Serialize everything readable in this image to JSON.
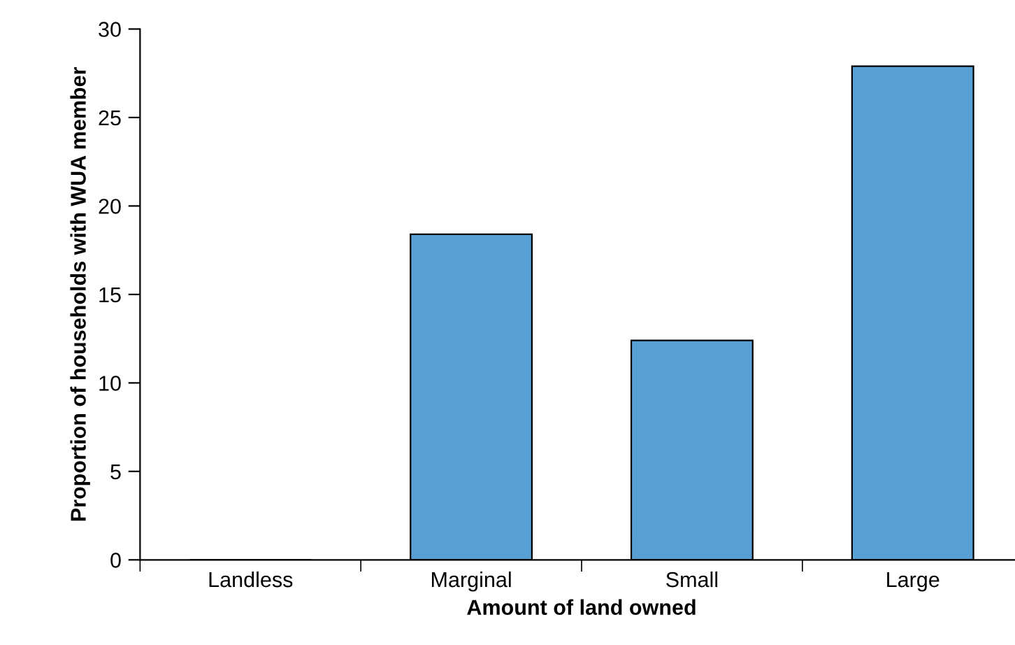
{
  "chart_data": {
    "type": "bar",
    "xlabel": "Amount of land owned",
    "ylabel": "Proportion of households with WUA member",
    "categories": [
      "Landless",
      "Marginal",
      "Small",
      "Large"
    ],
    "values": [
      0,
      18.4,
      12.4,
      27.9
    ],
    "color": "#589fd3",
    "ylim": [
      0,
      30
    ],
    "yticks": [
      0,
      5,
      10,
      15,
      20,
      25,
      30
    ],
    "grid": false
  }
}
